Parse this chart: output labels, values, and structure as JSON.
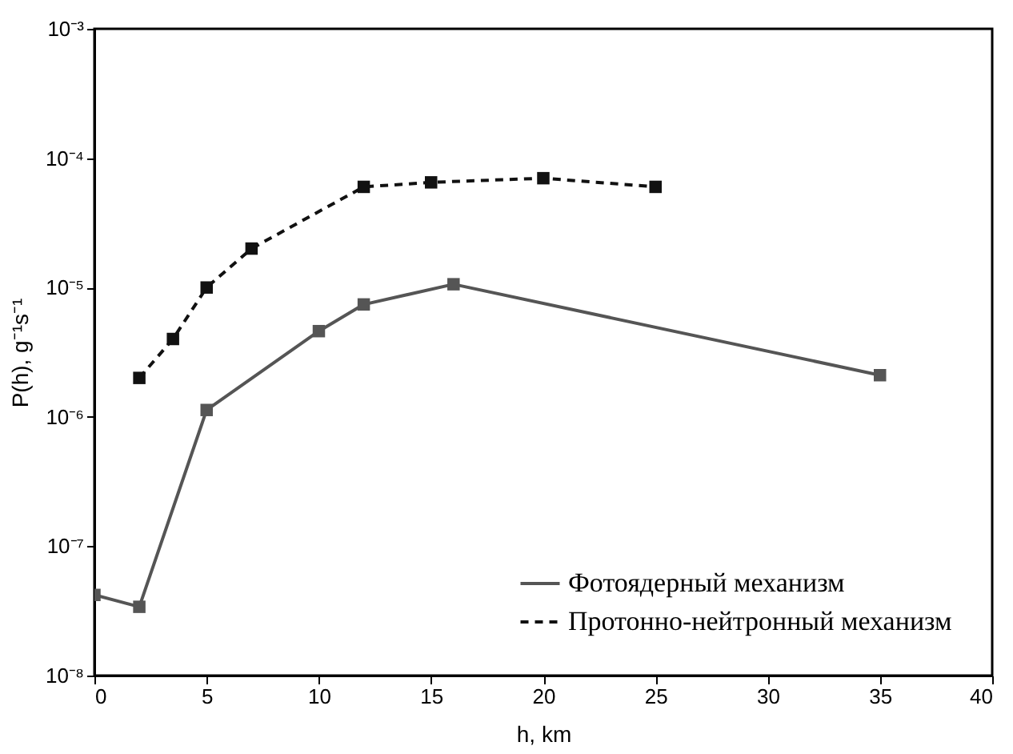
{
  "chart_data": {
    "type": "line",
    "xlabel": "h, km",
    "ylabel": "P(h), g⁻¹s⁻¹",
    "xlim": [
      0,
      40
    ],
    "xticks": [
      0,
      5,
      10,
      15,
      20,
      25,
      30,
      35,
      40
    ],
    "ylim": [
      1e-08,
      0.001
    ],
    "yticks": [
      {
        "value": 1e-08,
        "label": "10⁻⁸"
      },
      {
        "value": 1e-07,
        "label": "10⁻⁷"
      },
      {
        "value": 1e-06,
        "label": "10⁻⁶"
      },
      {
        "value": 1e-05,
        "label": "10⁻⁵"
      },
      {
        "value": 0.0001,
        "label": "10⁻⁴"
      },
      {
        "value": 0.001,
        "label": "10⁻³"
      }
    ],
    "log": "y",
    "grid": false,
    "legend": "bottom right",
    "marker": "square",
    "series": [
      {
        "name": "Фотоядерный механизм",
        "color": "#555555",
        "line_style": "solid",
        "x": [
          0,
          2,
          5,
          10,
          12,
          16,
          35
        ],
        "values": [
          4.2e-08,
          3.4e-08,
          1.13e-06,
          4.6e-06,
          7.4e-06,
          1.06e-05,
          2.1e-06
        ]
      },
      {
        "name": "Протонно-нейтронный механизм",
        "color": "#111111",
        "line_style": "dashed",
        "x": [
          2,
          3.5,
          5,
          7,
          12,
          15,
          20,
          25
        ],
        "values": [
          2e-06,
          4e-06,
          1e-05,
          2e-05,
          6e-05,
          6.5e-05,
          7e-05,
          6e-05
        ]
      }
    ]
  }
}
